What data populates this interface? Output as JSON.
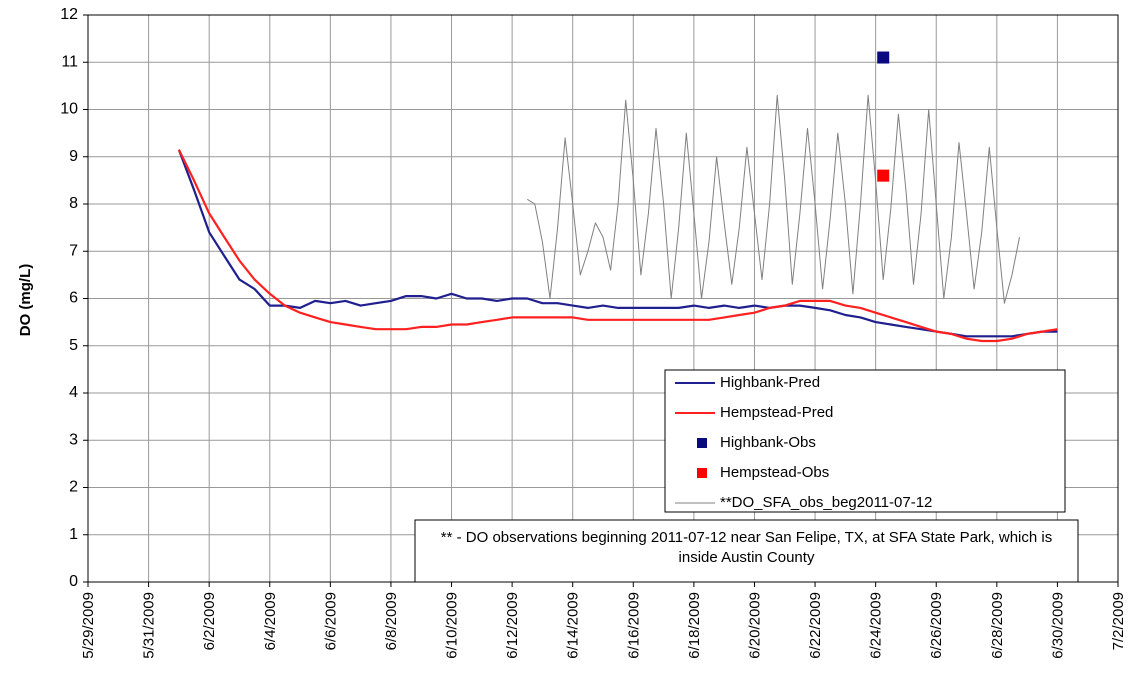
{
  "chart_data": {
    "type": "line",
    "ylabel": "DO (mg/L)",
    "ylim": [
      0,
      12
    ],
    "yticks": [
      0,
      1,
      2,
      3,
      4,
      5,
      6,
      7,
      8,
      9,
      10,
      11,
      12
    ],
    "xlim": [
      "2009-05-29",
      "2009-07-02"
    ],
    "xticks": [
      {
        "value": "2009-05-29",
        "label": "5/29/2009"
      },
      {
        "value": "2009-05-31",
        "label": "5/31/2009"
      },
      {
        "value": "2009-06-02",
        "label": "6/2/2009"
      },
      {
        "value": "2009-06-04",
        "label": "6/4/2009"
      },
      {
        "value": "2009-06-06",
        "label": "6/6/2009"
      },
      {
        "value": "2009-06-08",
        "label": "6/8/2009"
      },
      {
        "value": "2009-06-10",
        "label": "6/10/2009"
      },
      {
        "value": "2009-06-12",
        "label": "6/12/2009"
      },
      {
        "value": "2009-06-14",
        "label": "6/14/2009"
      },
      {
        "value": "2009-06-16",
        "label": "6/16/2009"
      },
      {
        "value": "2009-06-18",
        "label": "6/18/2009"
      },
      {
        "value": "2009-06-20",
        "label": "6/20/2009"
      },
      {
        "value": "2009-06-22",
        "label": "6/22/2009"
      },
      {
        "value": "2009-06-24",
        "label": "6/24/2009"
      },
      {
        "value": "2009-06-26",
        "label": "6/26/2009"
      },
      {
        "value": "2009-06-28",
        "label": "6/28/2009"
      },
      {
        "value": "2009-06-30",
        "label": "6/30/2009"
      },
      {
        "value": "2009-07-02",
        "label": "7/2/2009"
      }
    ],
    "grid": true,
    "legend": "lower right",
    "annotation": "** - DO observations beginning 2011-07-12 near San Felipe, TX, at SFA State Park, which is inside Austin County",
    "series": [
      {
        "name": "Highbank-Pred",
        "color": "#1f1f8f",
        "mark": "line",
        "x": [
          "2009-06-01T00:00",
          "2009-06-01T12:00",
          "2009-06-02T00:00",
          "2009-06-02T12:00",
          "2009-06-03T00:00",
          "2009-06-03T12:00",
          "2009-06-04T00:00",
          "2009-06-04T12:00",
          "2009-06-05T00:00",
          "2009-06-05T12:00",
          "2009-06-06T00:00",
          "2009-06-06T12:00",
          "2009-06-07T00:00",
          "2009-06-07T12:00",
          "2009-06-08T00:00",
          "2009-06-08T12:00",
          "2009-06-09T00:00",
          "2009-06-09T12:00",
          "2009-06-10T00:00",
          "2009-06-10T12:00",
          "2009-06-11T00:00",
          "2009-06-11T12:00",
          "2009-06-12T00:00",
          "2009-06-12T12:00",
          "2009-06-13T00:00",
          "2009-06-13T12:00",
          "2009-06-14T00:00",
          "2009-06-14T12:00",
          "2009-06-15T00:00",
          "2009-06-15T12:00",
          "2009-06-16T00:00",
          "2009-06-16T12:00",
          "2009-06-17T00:00",
          "2009-06-17T12:00",
          "2009-06-18T00:00",
          "2009-06-18T12:00",
          "2009-06-19T00:00",
          "2009-06-19T12:00",
          "2009-06-20T00:00",
          "2009-06-20T12:00",
          "2009-06-21T00:00",
          "2009-06-21T12:00",
          "2009-06-22T00:00",
          "2009-06-22T12:00",
          "2009-06-23T00:00",
          "2009-06-23T12:00",
          "2009-06-24T00:00",
          "2009-06-24T12:00",
          "2009-06-25T00:00",
          "2009-06-25T12:00",
          "2009-06-26T00:00",
          "2009-06-26T12:00",
          "2009-06-27T00:00",
          "2009-06-27T12:00",
          "2009-06-28T00:00",
          "2009-06-28T12:00",
          "2009-06-29T00:00",
          "2009-06-29T12:00",
          "2009-06-30T00:00"
        ],
        "values": [
          9.15,
          8.3,
          7.4,
          6.9,
          6.4,
          6.2,
          5.85,
          5.85,
          5.8,
          5.95,
          5.9,
          5.95,
          5.85,
          5.9,
          5.95,
          6.05,
          6.05,
          6.0,
          6.1,
          6.0,
          6.0,
          5.95,
          6.0,
          6.0,
          5.9,
          5.9,
          5.85,
          5.8,
          5.85,
          5.8,
          5.8,
          5.8,
          5.8,
          5.8,
          5.85,
          5.8,
          5.85,
          5.8,
          5.85,
          5.8,
          5.85,
          5.85,
          5.8,
          5.75,
          5.65,
          5.6,
          5.5,
          5.45,
          5.4,
          5.35,
          5.3,
          5.25,
          5.2,
          5.2,
          5.2,
          5.2,
          5.25,
          5.3,
          5.3
        ]
      },
      {
        "name": "Hempstead-Pred",
        "color": "#ff2020",
        "mark": "line",
        "x": [
          "2009-06-01T00:00",
          "2009-06-01T12:00",
          "2009-06-02T00:00",
          "2009-06-02T12:00",
          "2009-06-03T00:00",
          "2009-06-03T12:00",
          "2009-06-04T00:00",
          "2009-06-04T12:00",
          "2009-06-05T00:00",
          "2009-06-05T12:00",
          "2009-06-06T00:00",
          "2009-06-06T12:00",
          "2009-06-07T00:00",
          "2009-06-07T12:00",
          "2009-06-08T00:00",
          "2009-06-08T12:00",
          "2009-06-09T00:00",
          "2009-06-09T12:00",
          "2009-06-10T00:00",
          "2009-06-10T12:00",
          "2009-06-11T00:00",
          "2009-06-11T12:00",
          "2009-06-12T00:00",
          "2009-06-12T12:00",
          "2009-06-13T00:00",
          "2009-06-13T12:00",
          "2009-06-14T00:00",
          "2009-06-14T12:00",
          "2009-06-15T00:00",
          "2009-06-15T12:00",
          "2009-06-16T00:00",
          "2009-06-16T12:00",
          "2009-06-17T00:00",
          "2009-06-17T12:00",
          "2009-06-18T00:00",
          "2009-06-18T12:00",
          "2009-06-19T00:00",
          "2009-06-19T12:00",
          "2009-06-20T00:00",
          "2009-06-20T12:00",
          "2009-06-21T00:00",
          "2009-06-21T12:00",
          "2009-06-22T00:00",
          "2009-06-22T12:00",
          "2009-06-23T00:00",
          "2009-06-23T12:00",
          "2009-06-24T00:00",
          "2009-06-24T12:00",
          "2009-06-25T00:00",
          "2009-06-25T12:00",
          "2009-06-26T00:00",
          "2009-06-26T12:00",
          "2009-06-27T00:00",
          "2009-06-27T12:00",
          "2009-06-28T00:00",
          "2009-06-28T12:00",
          "2009-06-29T00:00",
          "2009-06-29T12:00",
          "2009-06-30T00:00"
        ],
        "values": [
          9.15,
          8.5,
          7.8,
          7.3,
          6.8,
          6.4,
          6.1,
          5.85,
          5.7,
          5.6,
          5.5,
          5.45,
          5.4,
          5.35,
          5.35,
          5.35,
          5.4,
          5.4,
          5.45,
          5.45,
          5.5,
          5.55,
          5.6,
          5.6,
          5.6,
          5.6,
          5.6,
          5.55,
          5.55,
          5.55,
          5.55,
          5.55,
          5.55,
          5.55,
          5.55,
          5.55,
          5.6,
          5.65,
          5.7,
          5.8,
          5.85,
          5.95,
          5.95,
          5.95,
          5.85,
          5.8,
          5.7,
          5.6,
          5.5,
          5.4,
          5.3,
          5.25,
          5.15,
          5.1,
          5.1,
          5.15,
          5.25,
          5.3,
          5.35
        ]
      },
      {
        "name": "Highbank-Obs",
        "color": "#0a0a80",
        "mark": "square",
        "x": [
          "2009-06-24T06:00"
        ],
        "values": [
          11.1
        ]
      },
      {
        "name": "Hempstead-Obs",
        "color": "#ff0000",
        "mark": "square",
        "x": [
          "2009-06-24T06:00"
        ],
        "values": [
          8.6
        ]
      },
      {
        "name": "**DO_SFA_obs_beg2011-07-12",
        "color": "#808080",
        "mark": "thin-line",
        "x": [
          "2009-06-12T12:00",
          "2009-06-12T18:00",
          "2009-06-13T00:00",
          "2009-06-13T06:00",
          "2009-06-13T12:00",
          "2009-06-13T18:00",
          "2009-06-14T00:00",
          "2009-06-14T06:00",
          "2009-06-14T12:00",
          "2009-06-14T18:00",
          "2009-06-15T00:00",
          "2009-06-15T06:00",
          "2009-06-15T12:00",
          "2009-06-15T18:00",
          "2009-06-16T00:00",
          "2009-06-16T06:00",
          "2009-06-16T12:00",
          "2009-06-16T18:00",
          "2009-06-17T00:00",
          "2009-06-17T06:00",
          "2009-06-17T12:00",
          "2009-06-17T18:00",
          "2009-06-18T00:00",
          "2009-06-18T06:00",
          "2009-06-18T12:00",
          "2009-06-18T18:00",
          "2009-06-19T00:00",
          "2009-06-19T06:00",
          "2009-06-19T12:00",
          "2009-06-19T18:00",
          "2009-06-20T00:00",
          "2009-06-20T06:00",
          "2009-06-20T12:00",
          "2009-06-20T18:00",
          "2009-06-21T00:00",
          "2009-06-21T06:00",
          "2009-06-21T12:00",
          "2009-06-21T18:00",
          "2009-06-22T00:00",
          "2009-06-22T06:00",
          "2009-06-22T12:00",
          "2009-06-22T18:00",
          "2009-06-23T00:00",
          "2009-06-23T06:00",
          "2009-06-23T12:00",
          "2009-06-23T18:00",
          "2009-06-24T00:00",
          "2009-06-24T06:00",
          "2009-06-24T12:00",
          "2009-06-24T18:00",
          "2009-06-25T00:00",
          "2009-06-25T06:00",
          "2009-06-25T12:00",
          "2009-06-25T18:00",
          "2009-06-26T00:00",
          "2009-06-26T06:00",
          "2009-06-26T12:00",
          "2009-06-26T18:00",
          "2009-06-27T00:00",
          "2009-06-27T06:00",
          "2009-06-27T12:00",
          "2009-06-27T18:00",
          "2009-06-28T00:00",
          "2009-06-28T06:00",
          "2009-06-28T12:00",
          "2009-06-28T18:00"
        ],
        "values": [
          8.1,
          8.0,
          7.2,
          6.0,
          7.5,
          9.4,
          8.0,
          6.5,
          7.0,
          7.6,
          7.3,
          6.6,
          8.0,
          10.2,
          8.5,
          6.5,
          7.8,
          9.6,
          8.0,
          6.0,
          7.5,
          9.5,
          7.8,
          6.0,
          7.2,
          9.0,
          7.6,
          6.3,
          7.5,
          9.2,
          7.8,
          6.4,
          8.0,
          10.3,
          8.5,
          6.3,
          7.8,
          9.6,
          8.0,
          6.2,
          7.7,
          9.5,
          8.0,
          6.1,
          8.0,
          10.3,
          8.5,
          6.4,
          7.9,
          9.9,
          8.3,
          6.3,
          7.8,
          10.0,
          8.0,
          6.0,
          7.3,
          9.3,
          7.8,
          6.2,
          7.4,
          9.2,
          7.5,
          5.9,
          6.5,
          7.3
        ]
      }
    ]
  }
}
